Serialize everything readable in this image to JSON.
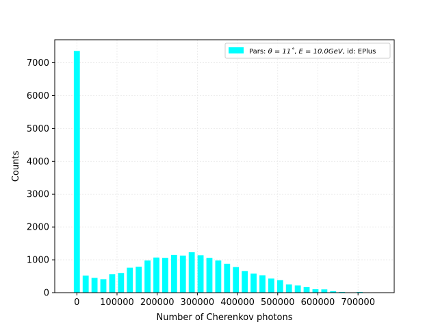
{
  "chart_data": {
    "type": "bar",
    "xlabel": "Number of Cherenkov photons",
    "ylabel": "Counts",
    "xlim": [
      -55000,
      790000
    ],
    "ylim": [
      0,
      7700
    ],
    "bar_width": 15000,
    "color": "#00ffff",
    "grid": true,
    "legend_position": "top-right",
    "legend_prefix": "Pars: ",
    "legend_theta": "θ = 11˚",
    "legend_energy": "E = 10.0GeV",
    "legend_suffix": ", id: EPlus",
    "series": [
      {
        "x": [
          0,
          22000,
          44000,
          66000,
          88000,
          110000,
          132000,
          154000,
          176000,
          198000,
          220000,
          242000,
          264000,
          286000,
          308000,
          330000,
          352000,
          374000,
          396000,
          418000,
          440000,
          462000,
          484000,
          506000,
          528000,
          550000,
          572000,
          594000,
          616000,
          638000,
          660000,
          682000,
          704000,
          726000,
          748000
        ],
        "values": [
          7360,
          520,
          450,
          410,
          560,
          600,
          760,
          790,
          980,
          1070,
          1060,
          1150,
          1130,
          1230,
          1140,
          1060,
          980,
          880,
          780,
          660,
          580,
          530,
          430,
          380,
          250,
          220,
          170,
          105,
          100,
          45,
          20,
          10,
          20,
          8,
          5
        ]
      }
    ],
    "xticks": [
      0,
      100000,
      200000,
      300000,
      400000,
      500000,
      600000,
      700000
    ],
    "xtick_labels": [
      "0",
      "100000",
      "200000",
      "300000",
      "400000",
      "500000",
      "600000",
      "700000"
    ],
    "yticks": [
      0,
      1000,
      2000,
      3000,
      4000,
      5000,
      6000,
      7000
    ],
    "ytick_labels": [
      "0",
      "1000",
      "2000",
      "3000",
      "4000",
      "5000",
      "6000",
      "7000"
    ]
  }
}
